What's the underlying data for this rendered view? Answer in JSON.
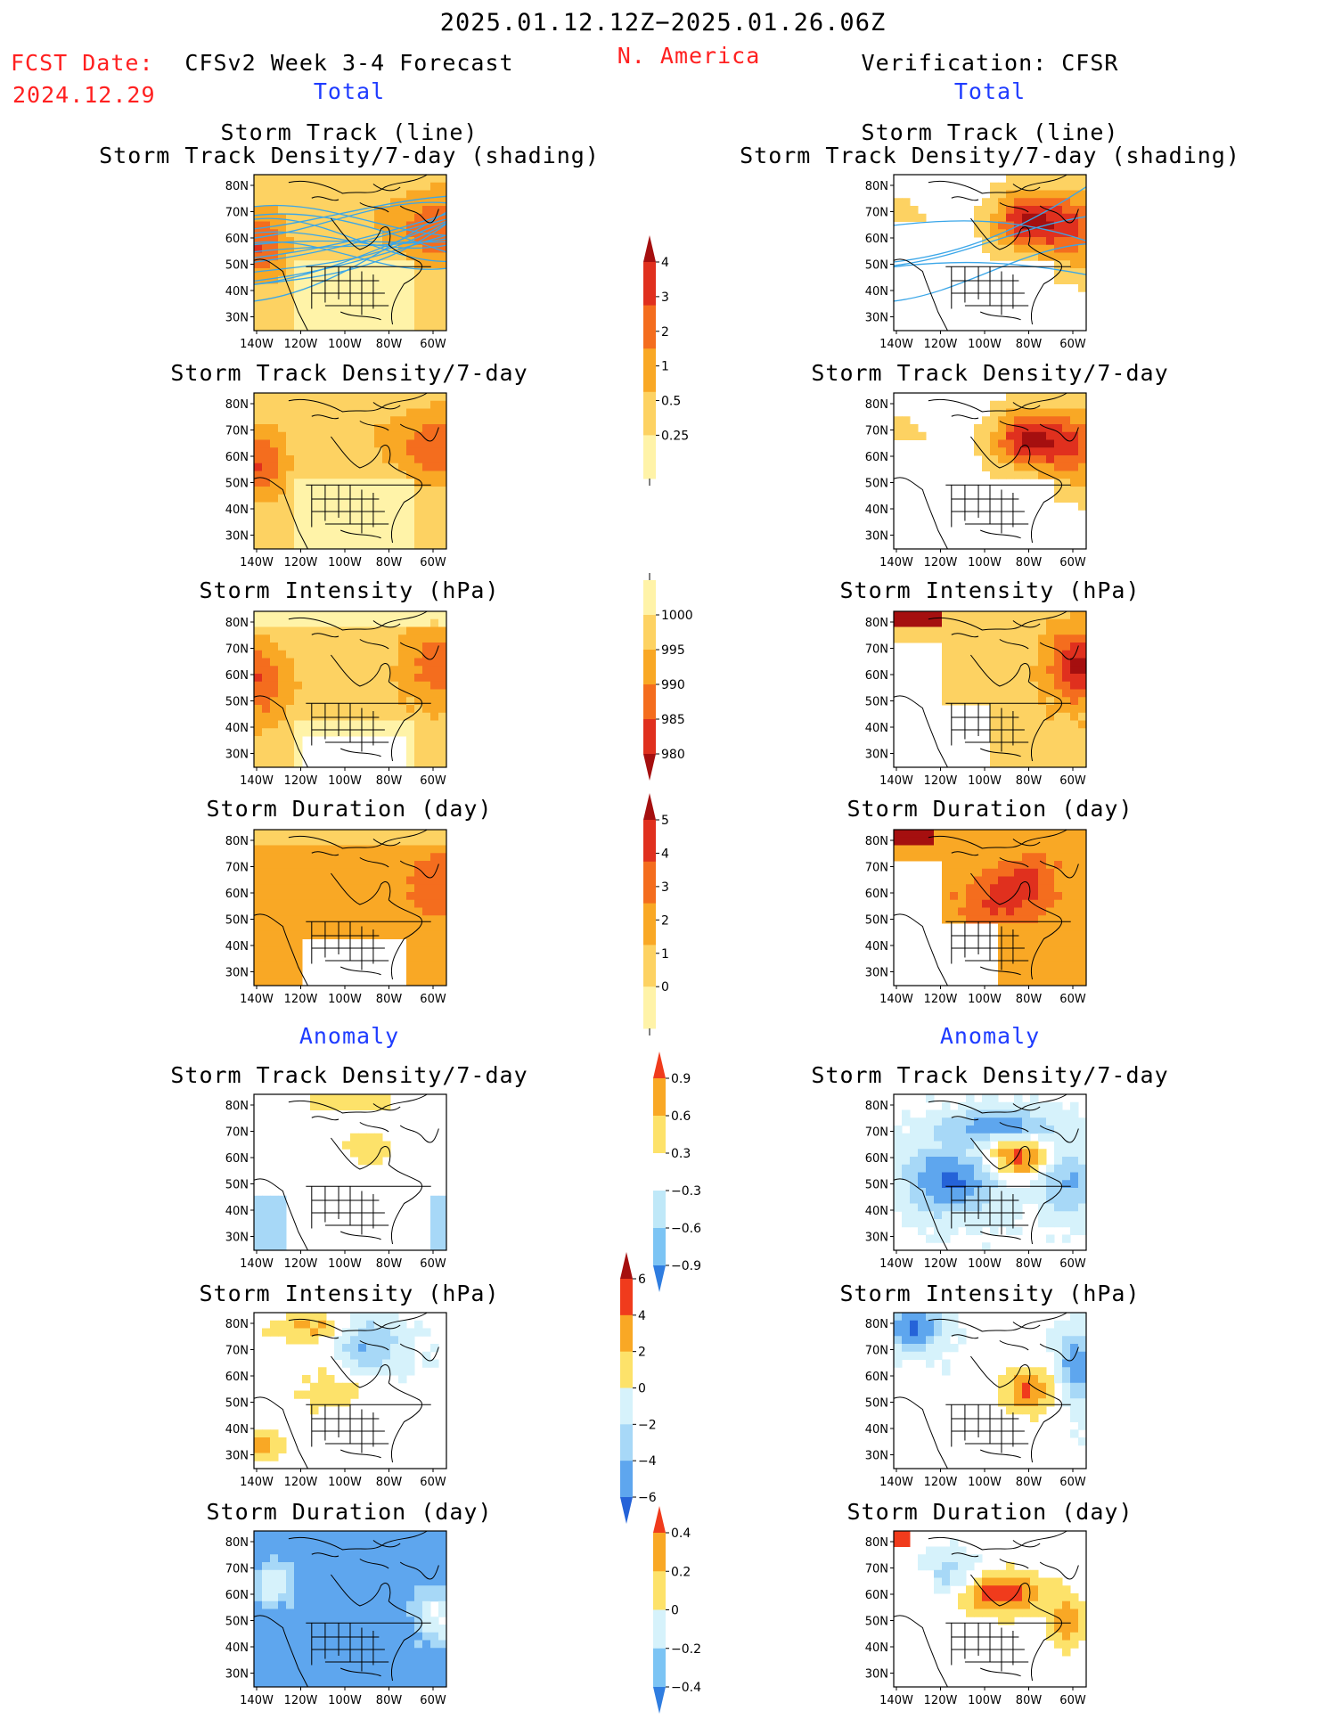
{
  "header": {
    "date_range": "2025.01.12.12Z−2025.01.26.06Z",
    "fcst_label": "FCST Date:",
    "fcst_date": "2024.12.29",
    "left_title": "CFSv2 Week 3-4 Forecast",
    "region": "N. America",
    "right_title": "Verification: CFSR",
    "left_sub": "Total",
    "right_sub": "Total",
    "anomaly_left": "Anomaly",
    "anomaly_right": "Anomaly"
  },
  "axes": {
    "lat_labels": [
      "80N",
      "70N",
      "60N",
      "50N",
      "40N",
      "30N"
    ],
    "lon_labels": [
      "140W",
      "120W",
      "100W",
      "80W",
      "60W"
    ]
  },
  "panels": [
    {
      "id": "fc-track",
      "title1": "Storm Track (line)",
      "title2": "Storm Track Density/7-day (shading)",
      "kind": "density-lines",
      "field": "fc-density"
    },
    {
      "id": "ob-track",
      "title1": "Storm Track (line)",
      "title2": "Storm Track Density/7-day (shading)",
      "kind": "density-lines",
      "field": "ob-density"
    },
    {
      "id": "fc-density",
      "title1": "Storm Track Density/7-day",
      "title2": "",
      "kind": "density",
      "field": "fc-density"
    },
    {
      "id": "ob-density",
      "title1": "Storm Track Density/7-day",
      "title2": "",
      "kind": "density",
      "field": "ob-density"
    },
    {
      "id": "fc-intens",
      "title1": "Storm Intensity (hPa)",
      "title2": "",
      "kind": "intensity",
      "field": "fc-intens"
    },
    {
      "id": "ob-intens",
      "title1": "Storm Intensity (hPa)",
      "title2": "",
      "kind": "intensity",
      "field": "ob-intens"
    },
    {
      "id": "fc-dur",
      "title1": "Storm Duration (day)",
      "title2": "",
      "kind": "duration",
      "field": "fc-dur"
    },
    {
      "id": "ob-dur",
      "title1": "Storm Duration (day)",
      "title2": "",
      "kind": "duration",
      "field": "ob-dur"
    },
    {
      "id": "fc-adens",
      "title1": "Storm Track Density/7-day",
      "title2": "",
      "kind": "anom",
      "field": "fc-adens"
    },
    {
      "id": "ob-adens",
      "title1": "Storm Track Density/7-day",
      "title2": "",
      "kind": "anom",
      "field": "ob-adens"
    },
    {
      "id": "fc-aint",
      "title1": "Storm Intensity (hPa)",
      "title2": "",
      "kind": "anom",
      "field": "fc-aint"
    },
    {
      "id": "ob-aint",
      "title1": "Storm Intensity (hPa)",
      "title2": "",
      "kind": "anom",
      "field": "ob-aint"
    },
    {
      "id": "fc-adur",
      "title1": "Storm Duration (day)",
      "title2": "",
      "kind": "anom",
      "field": "fc-adur"
    },
    {
      "id": "ob-adur",
      "title1": "Storm Duration (day)",
      "title2": "",
      "kind": "anom",
      "field": "ob-adur"
    }
  ],
  "colorbars": [
    {
      "id": "cb-density",
      "labels": [
        "4",
        "3",
        "2",
        "1",
        "0.5",
        "0.25"
      ],
      "colors": [
        "#a50f0f",
        "#e0301e",
        "#f46d1e",
        "#f9a825",
        "#fdd262",
        "#fff3a8"
      ],
      "top_arrow": true,
      "bottom_arrow": false
    },
    {
      "id": "cb-intens",
      "labels": [
        "1000",
        "995",
        "990",
        "985",
        "980"
      ],
      "colors": [
        "#fff3a8",
        "#fdd262",
        "#f9a825",
        "#f46d1e",
        "#e0301e",
        "#a50f0f"
      ],
      "top_arrow": false,
      "bottom_arrow": true
    },
    {
      "id": "cb-dur",
      "labels": [
        "5",
        "4",
        "3",
        "2",
        "1",
        "0"
      ],
      "colors": [
        "#a50f0f",
        "#e0301e",
        "#f46d1e",
        "#f9a825",
        "#fdd262",
        "#fff3a8"
      ],
      "top_arrow": true,
      "bottom_arrow": false
    },
    {
      "id": "cb-adens",
      "labels": [
        "0.9",
        "0.6",
        "0.3",
        "−0.3",
        "−0.6",
        "−0.9"
      ],
      "colors": [
        "#f03b1c",
        "#f9a825",
        "#fde26a",
        "#ffffff",
        "#bfe8f8",
        "#7cc4f4",
        "#2f7de0"
      ],
      "top_arrow": true,
      "bottom_arrow": true
    },
    {
      "id": "cb-aint",
      "labels": [
        "6",
        "4",
        "2",
        "0",
        "−2",
        "−4",
        "−6"
      ],
      "colors": [
        "#a50f0f",
        "#f03b1c",
        "#f9a825",
        "#fde26a",
        "#d6f2fb",
        "#a7d8f7",
        "#5ea6ee",
        "#2563d8"
      ],
      "top_arrow": true,
      "bottom_arrow": true
    },
    {
      "id": "cb-adur",
      "labels": [
        "0.4",
        "0.2",
        "0",
        "−0.2",
        "−0.4"
      ],
      "colors": [
        "#f03b1c",
        "#f9a825",
        "#fde26a",
        "#d6f2fb",
        "#7cc4f4",
        "#2f7de0"
      ],
      "top_arrow": true,
      "bottom_arrow": true
    }
  ],
  "colors": {
    "red": "#ff2020",
    "blue": "#1f3cff",
    "track_line": "#3aa6e8"
  }
}
